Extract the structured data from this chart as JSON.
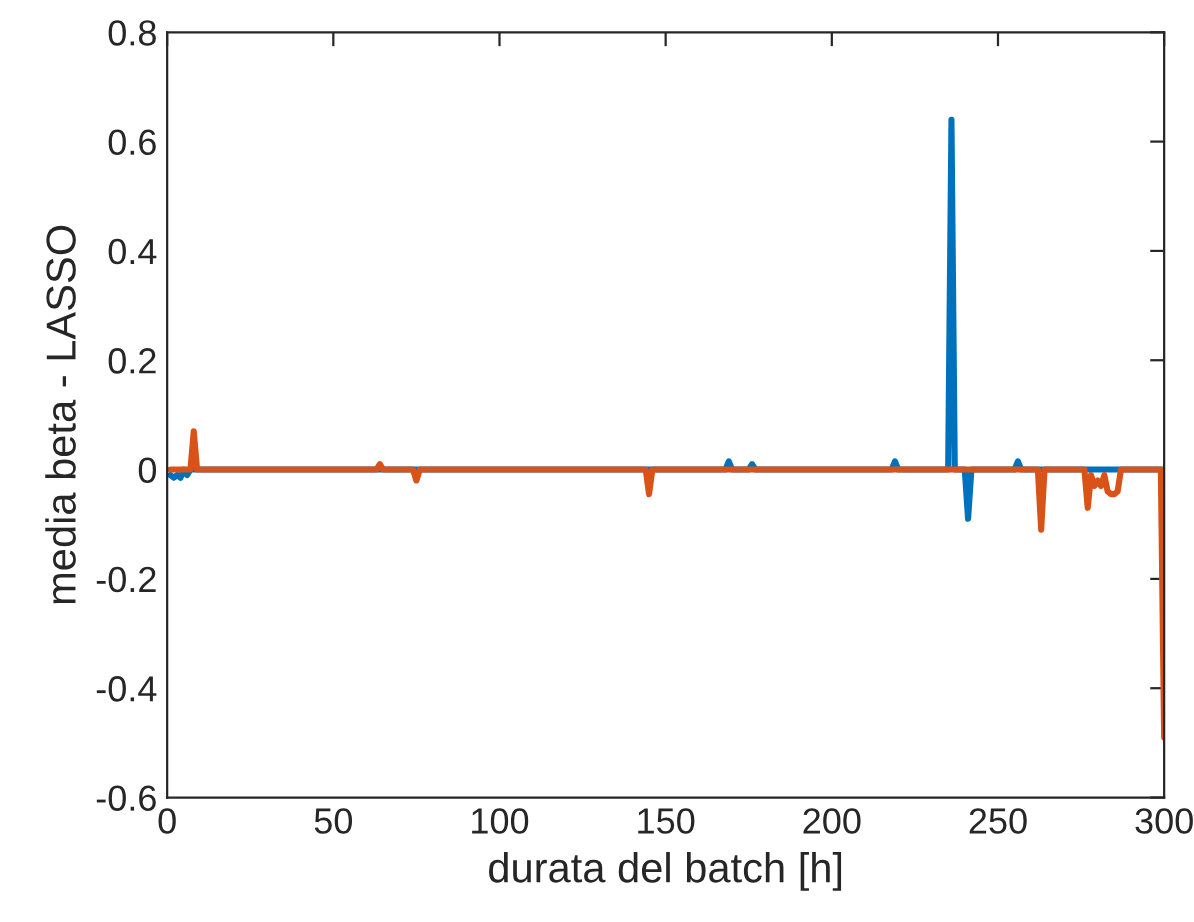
{
  "chart_data": {
    "type": "line",
    "xlabel": "durata del batch [h]",
    "ylabel": "media beta - LASSO",
    "xlim": [
      0,
      300
    ],
    "ylim": [
      -0.6,
      0.8
    ],
    "xticks": [
      0,
      50,
      100,
      150,
      200,
      250,
      300
    ],
    "yticks": [
      -0.6,
      -0.4,
      -0.2,
      0,
      0.2,
      0.4,
      0.6,
      0.8
    ],
    "grid": false,
    "legend": false,
    "marker": "none",
    "line_style": "solid",
    "series": [
      {
        "color": "#0072bd",
        "x": [
          1,
          2,
          3,
          4,
          5,
          6,
          7,
          168,
          169,
          170,
          171,
          175,
          176,
          177,
          218,
          219,
          220,
          235,
          236,
          237,
          238,
          240,
          241,
          242,
          255,
          256,
          257,
          300
        ],
        "values": [
          -0.01,
          -0.015,
          -0.01,
          -0.015,
          0,
          -0.01,
          0,
          0,
          0.015,
          0,
          0,
          0,
          0.01,
          0,
          0,
          0.015,
          0,
          0,
          0.64,
          0,
          0,
          0,
          -0.09,
          0,
          0,
          0.015,
          0,
          0
        ]
      },
      {
        "color": "#d95319",
        "x": [
          1,
          7,
          8,
          9,
          10,
          63,
          64,
          65,
          74,
          75,
          76,
          144,
          145,
          146,
          262,
          263,
          264,
          276,
          277,
          278,
          279,
          280,
          281,
          282,
          283,
          284,
          285,
          286,
          287,
          288,
          298,
          299,
          300
        ],
        "values": [
          0,
          0,
          0.07,
          0,
          0,
          0,
          0.01,
          0,
          0,
          -0.02,
          0,
          0,
          -0.045,
          0,
          0,
          -0.11,
          0,
          0,
          -0.07,
          -0.01,
          -0.03,
          -0.02,
          -0.03,
          -0.01,
          -0.04,
          -0.045,
          -0.045,
          -0.04,
          0,
          0,
          0,
          0,
          -0.49
        ]
      }
    ]
  }
}
